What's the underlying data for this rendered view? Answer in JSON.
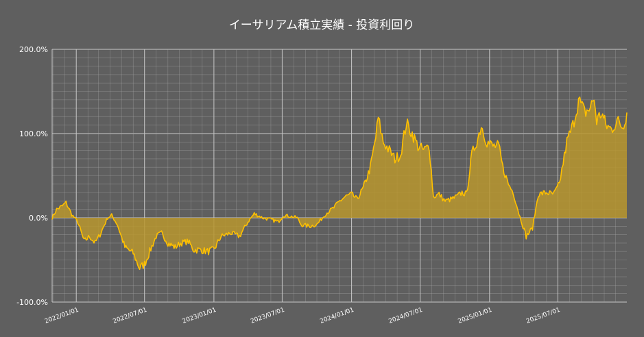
{
  "chart_data": {
    "type": "area",
    "title": "イーサリアム積立実績 - 投資利回り",
    "ylim": [
      -100,
      200
    ],
    "y_ticks": [
      "200.0%",
      "100.0%",
      "0.0%",
      "-100.0%"
    ],
    "y_tick_values": [
      200,
      100,
      0,
      -100
    ],
    "x_range": [
      "2021-10-29",
      "2025-12-31"
    ],
    "x_ticks": [
      {
        "date": "2022-01-01",
        "label": "2022/01/01"
      },
      {
        "date": "2022-07-01",
        "label": "2022/07/01"
      },
      {
        "date": "2023-01-01",
        "label": "2023/01/01"
      },
      {
        "date": "2023-07-01",
        "label": "2023/07/01"
      },
      {
        "date": "2024-01-01",
        "label": "2024/01/01"
      },
      {
        "date": "2024-07-01",
        "label": "2024/07/01"
      },
      {
        "date": "2025-01-01",
        "label": "2025/01/01"
      },
      {
        "date": "2025-07-01",
        "label": "2025/07/01"
      }
    ],
    "grid": true,
    "colors": {
      "line": "#ffc000",
      "fill": "#b8962e",
      "background": "#5f5f5f",
      "grid": "#a8a8a8"
    },
    "series": [
      {
        "values": [
          [
            "2021-10-29",
            0
          ],
          [
            "2021-11-10",
            10
          ],
          [
            "2021-11-25",
            14
          ],
          [
            "2021-12-05",
            18
          ],
          [
            "2021-12-20",
            4
          ],
          [
            "2022-01-05",
            -5
          ],
          [
            "2022-01-22",
            -28
          ],
          [
            "2022-02-05",
            -22
          ],
          [
            "2022-02-20",
            -30
          ],
          [
            "2022-03-05",
            -20
          ],
          [
            "2022-03-25",
            0
          ],
          [
            "2022-04-05",
            3
          ],
          [
            "2022-04-20",
            -8
          ],
          [
            "2022-05-10",
            -35
          ],
          [
            "2022-06-01",
            -42
          ],
          [
            "2022-06-18",
            -60
          ],
          [
            "2022-07-01",
            -55
          ],
          [
            "2022-07-15",
            -40
          ],
          [
            "2022-08-01",
            -22
          ],
          [
            "2022-08-15",
            -18
          ],
          [
            "2022-09-01",
            -30
          ],
          [
            "2022-09-20",
            -35
          ],
          [
            "2022-10-05",
            -30
          ],
          [
            "2022-10-25",
            -28
          ],
          [
            "2022-11-08",
            -38
          ],
          [
            "2022-11-25",
            -38
          ],
          [
            "2022-12-15",
            -40
          ],
          [
            "2023-01-01",
            -38
          ],
          [
            "2023-01-20",
            -22
          ],
          [
            "2023-02-15",
            -18
          ],
          [
            "2023-03-10",
            -22
          ],
          [
            "2023-04-01",
            -5
          ],
          [
            "2023-04-18",
            5
          ],
          [
            "2023-05-10",
            0
          ],
          [
            "2023-06-01",
            -2
          ],
          [
            "2023-06-20",
            -5
          ],
          [
            "2023-07-05",
            3
          ],
          [
            "2023-07-20",
            2
          ],
          [
            "2023-08-10",
            0
          ],
          [
            "2023-08-20",
            -8
          ],
          [
            "2023-09-10",
            -10
          ],
          [
            "2023-10-01",
            -8
          ],
          [
            "2023-10-25",
            5
          ],
          [
            "2023-11-15",
            12
          ],
          [
            "2023-12-01",
            20
          ],
          [
            "2023-12-15",
            25
          ],
          [
            "2024-01-01",
            28
          ],
          [
            "2024-01-15",
            22
          ],
          [
            "2024-02-01",
            35
          ],
          [
            "2024-02-20",
            60
          ],
          [
            "2024-03-05",
            95
          ],
          [
            "2024-03-12",
            118
          ],
          [
            "2024-03-25",
            90
          ],
          [
            "2024-04-10",
            80
          ],
          [
            "2024-04-25",
            70
          ],
          [
            "2024-05-10",
            75
          ],
          [
            "2024-05-25",
            112
          ],
          [
            "2024-06-10",
            100
          ],
          [
            "2024-06-25",
            85
          ],
          [
            "2024-07-10",
            80
          ],
          [
            "2024-07-25",
            85
          ],
          [
            "2024-08-05",
            25
          ],
          [
            "2024-08-20",
            28
          ],
          [
            "2024-09-05",
            20
          ],
          [
            "2024-09-20",
            22
          ],
          [
            "2024-10-05",
            25
          ],
          [
            "2024-10-20",
            30
          ],
          [
            "2024-11-01",
            28
          ],
          [
            "2024-11-15",
            75
          ],
          [
            "2024-12-01",
            95
          ],
          [
            "2024-12-10",
            110
          ],
          [
            "2024-12-25",
            90
          ],
          [
            "2025-01-10",
            85
          ],
          [
            "2025-01-25",
            85
          ],
          [
            "2025-02-05",
            60
          ],
          [
            "2025-02-20",
            40
          ],
          [
            "2025-03-05",
            30
          ],
          [
            "2025-03-20",
            5
          ],
          [
            "2025-04-08",
            -22
          ],
          [
            "2025-04-25",
            -12
          ],
          [
            "2025-05-10",
            28
          ],
          [
            "2025-06-01",
            30
          ],
          [
            "2025-06-20",
            28
          ],
          [
            "2025-07-05",
            40
          ],
          [
            "2025-07-15",
            65
          ],
          [
            "2025-07-25",
            90
          ],
          [
            "2025-08-10",
            110
          ],
          [
            "2025-08-25",
            140
          ],
          [
            "2025-09-10",
            125
          ],
          [
            "2025-09-25",
            130
          ],
          [
            "2025-10-05",
            142
          ],
          [
            "2025-10-12",
            115
          ],
          [
            "2025-10-25",
            125
          ],
          [
            "2025-11-05",
            110
          ],
          [
            "2025-11-20",
            105
          ],
          [
            "2025-12-05",
            115
          ],
          [
            "2025-12-20",
            108
          ],
          [
            "2025-12-31",
            125
          ]
        ]
      }
    ]
  }
}
